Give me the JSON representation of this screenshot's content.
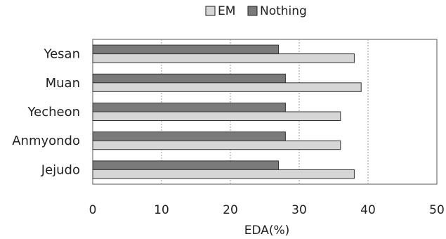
{
  "chart_data": {
    "type": "bar",
    "orientation": "horizontal",
    "categories": [
      "Yesan",
      "Muan",
      "Yecheon",
      "Anmyondo",
      "Jejudo"
    ],
    "series": [
      {
        "name": "EM",
        "values": [
          38,
          39,
          36,
          36,
          38
        ],
        "color": "#d6d6d6"
      },
      {
        "name": "Nothing",
        "values": [
          27,
          28,
          28,
          28,
          27
        ],
        "color": "#7a7a7a"
      }
    ],
    "xlabel": "EDA(%)",
    "ylabel": "",
    "xlim": [
      0,
      50
    ],
    "xticks": [
      0,
      10,
      20,
      30,
      40,
      50
    ],
    "grid": true,
    "legend_position": "top"
  }
}
